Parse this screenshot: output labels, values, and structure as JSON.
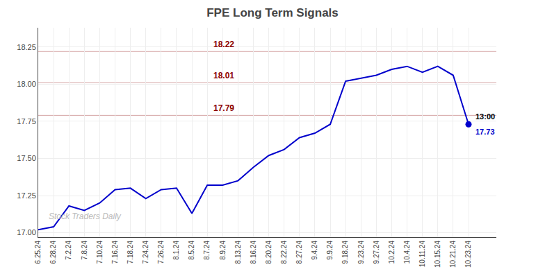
{
  "chart_data": {
    "type": "line",
    "title": "FPE Long Term Signals",
    "categories": [
      "6.25.24",
      "6.28.24",
      "7.2.24",
      "7.8.24",
      "7.10.24",
      "7.16.24",
      "7.18.24",
      "7.24.24",
      "7.26.24",
      "8.1.24",
      "8.5.24",
      "8.7.24",
      "8.9.24",
      "8.13.24",
      "8.16.24",
      "8.20.24",
      "8.22.24",
      "8.27.24",
      "9.4.24",
      "9.9.24",
      "9.18.24",
      "9.23.24",
      "9.27.24",
      "10.2.24",
      "10.4.24",
      "10.11.24",
      "10.15.24",
      "10.21.24",
      "10.23.24"
    ],
    "values": [
      17.02,
      17.04,
      17.18,
      17.15,
      17.2,
      17.29,
      17.3,
      17.23,
      17.29,
      17.3,
      17.13,
      17.32,
      17.32,
      17.35,
      17.44,
      17.52,
      17.56,
      17.64,
      17.67,
      17.73,
      18.02,
      18.04,
      18.06,
      18.1,
      18.12,
      18.08,
      18.12,
      18.06,
      17.73
    ],
    "color": "#0000cc",
    "hlines": [
      {
        "value": 17.79,
        "label": "17.79",
        "color": "#8b0000"
      },
      {
        "value": 18.01,
        "label": "18.01",
        "color": "#8b0000"
      },
      {
        "value": 18.22,
        "label": "18.22",
        "color": "#8b0000"
      }
    ],
    "annotations": [
      {
        "text": "13:00",
        "x": "10.23.24",
        "y": 17.73
      },
      {
        "text": "17.73",
        "x": "10.23.24",
        "y": 17.73
      },
      {
        "text": "Stock Traders Daily"
      }
    ],
    "ylim": [
      16.97,
      18.38
    ],
    "yticks": [
      {
        "value": 17.0,
        "label": "17.00"
      },
      {
        "value": 17.25,
        "label": "17.25"
      },
      {
        "value": 17.5,
        "label": "17.50"
      },
      {
        "value": 17.75,
        "label": "17.75"
      },
      {
        "value": 18.0,
        "label": "18.00"
      },
      {
        "value": 18.25,
        "label": "18.25"
      }
    ],
    "grid": true
  }
}
